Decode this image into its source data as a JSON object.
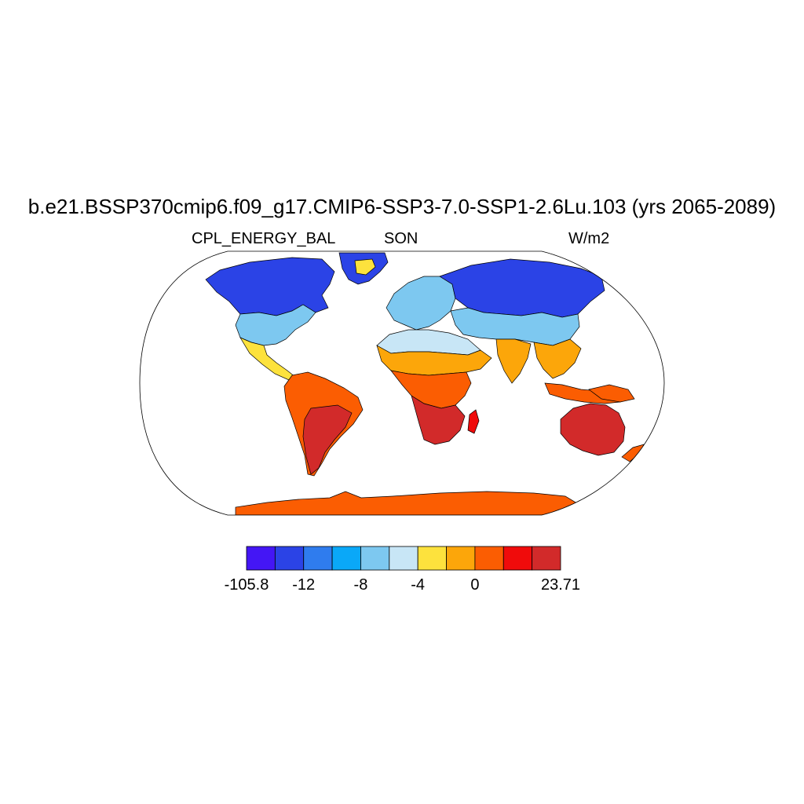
{
  "title": "b.e21.BSSP370cmip6.f09_g17.CMIP6-SSP3-7.0-SSP1-2.6Lu.103 (yrs 2065-2089)",
  "left_subtitle": "CPL_ENERGY_BAL",
  "center_subtitle": "SON",
  "right_subtitle": "W/m2",
  "colorbar": {
    "colors": [
      "#4416f5",
      "#2b43e6",
      "#2f7cee",
      "#0aa8f8",
      "#7dc8f0",
      "#c8e6f6",
      "#fde23d",
      "#fca60a",
      "#fb5d02",
      "#f00b0b",
      "#d22a2a"
    ],
    "labels": [
      {
        "text": "-105.8",
        "boundary": 0
      },
      {
        "text": "-12",
        "boundary": 2
      },
      {
        "text": "-8",
        "boundary": 4
      },
      {
        "text": "-4",
        "boundary": 6
      },
      {
        "text": "0",
        "boundary": 8
      },
      {
        "text": "23.71",
        "boundary": 11
      }
    ]
  },
  "map": {
    "projection": "robinson",
    "land_fill_by_region": [
      {
        "region": "greenland",
        "color": "#2b43e6"
      },
      {
        "region": "greenland-interior",
        "color": "#fde23d"
      },
      {
        "region": "canada-alaska",
        "color": "#2b43e6"
      },
      {
        "region": "usa",
        "color": "#7dc8f0"
      },
      {
        "region": "mexico-central-america",
        "color": "#fde23d"
      },
      {
        "region": "south-america",
        "color": "#fb5d02"
      },
      {
        "region": "south-america-south",
        "color": "#d22a2a"
      },
      {
        "region": "europe",
        "color": "#7dc8f0"
      },
      {
        "region": "russia-siberia",
        "color": "#2b43e6"
      },
      {
        "region": "central-asia",
        "color": "#7dc8f0"
      },
      {
        "region": "north-africa-sahara",
        "color": "#c8e6f6"
      },
      {
        "region": "sahel",
        "color": "#fca60a"
      },
      {
        "region": "central-africa",
        "color": "#fb5d02"
      },
      {
        "region": "southern-africa",
        "color": "#d22a2a"
      },
      {
        "region": "madagascar",
        "color": "#f00b0b"
      },
      {
        "region": "south-asia",
        "color": "#fca60a"
      },
      {
        "region": "southeast-asia",
        "color": "#fca60a"
      },
      {
        "region": "indonesia",
        "color": "#fb5d02"
      },
      {
        "region": "new-guinea",
        "color": "#fb5d02"
      },
      {
        "region": "australia",
        "color": "#d22a2a"
      },
      {
        "region": "new-zealand",
        "color": "#fb5d02"
      },
      {
        "region": "antarctica",
        "color": "#fb5d02"
      }
    ]
  }
}
